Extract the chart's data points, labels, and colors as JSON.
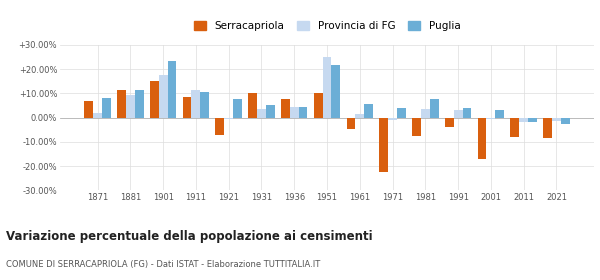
{
  "years": [
    1871,
    1881,
    1901,
    1911,
    1921,
    1931,
    1936,
    1951,
    1961,
    1971,
    1981,
    1991,
    2001,
    2011,
    2021
  ],
  "serracapriola": [
    7.0,
    11.5,
    15.0,
    8.5,
    -7.0,
    10.0,
    7.5,
    10.0,
    -4.5,
    -22.5,
    -7.5,
    -4.0,
    -17.0,
    -8.0,
    -8.5
  ],
  "provincia_fg": [
    2.0,
    9.5,
    17.5,
    11.5,
    -0.5,
    3.5,
    4.5,
    25.0,
    1.5,
    -1.0,
    3.5,
    3.0,
    -0.5,
    -2.0,
    -1.5
  ],
  "puglia": [
    8.0,
    11.5,
    23.5,
    10.5,
    7.5,
    5.0,
    4.5,
    21.5,
    5.5,
    4.0,
    7.5,
    4.0,
    3.0,
    -2.0,
    -2.5
  ],
  "color_serracapriola": "#d95f0e",
  "color_provincia": "#c6d9f0",
  "color_puglia": "#6baed6",
  "title": "Variazione percentuale della popolazione ai censimenti",
  "subtitle": "COMUNE DI SERRACAPRIOLA (FG) - Dati ISTAT - Elaborazione TUTTITALIA.IT",
  "ylim": [
    -30,
    30
  ],
  "yticks": [
    -30,
    -20,
    -10,
    0,
    10,
    20,
    30
  ],
  "ytick_labels": [
    "-30.00%",
    "-20.00%",
    "-10.00%",
    "0.00%",
    "+10.00%",
    "+20.00%",
    "+30.00%"
  ]
}
